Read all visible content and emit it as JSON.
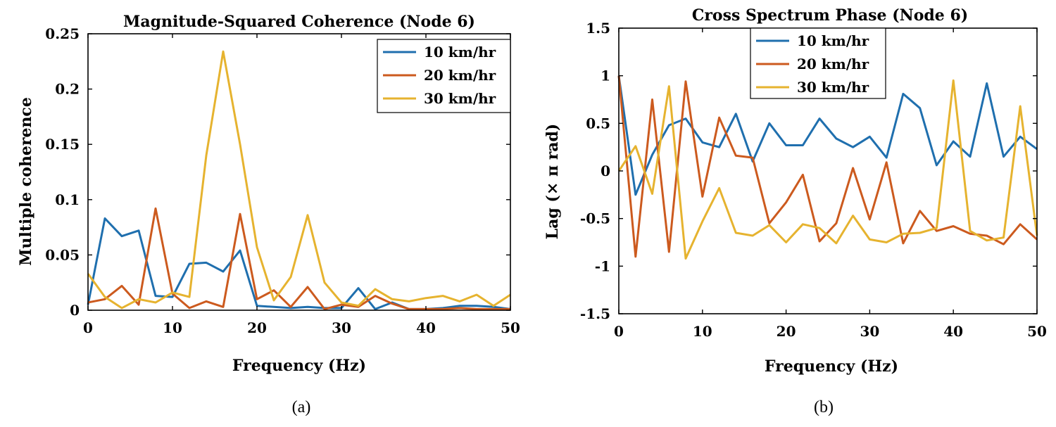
{
  "colors": {
    "s1": "#1f6fae",
    "s2": "#cc5a1e",
    "s3": "#e6b32f"
  },
  "chart_data": [
    {
      "type": "line",
      "title": "Magnitude-Squared Coherence (Node 6)",
      "xlabel": "Frequency (Hz)",
      "ylabel": "Multiple coherence",
      "xlim": [
        0,
        50
      ],
      "ylim": [
        0,
        0.25
      ],
      "xticks": [
        0,
        10,
        20,
        30,
        40,
        50
      ],
      "xtick_labels": [
        "0",
        "10",
        "20",
        "30",
        "40",
        "50"
      ],
      "yticks": [
        0,
        0.05,
        0.1,
        0.15,
        0.2,
        0.25
      ],
      "ytick_labels": [
        "0",
        "0.05",
        "0.1",
        "0.15",
        "0.2",
        "0.25"
      ],
      "legend_position": "top-right",
      "caption": "(a)",
      "x": [
        0,
        2,
        4,
        6,
        8,
        10,
        12,
        14,
        16,
        18,
        20,
        22,
        24,
        26,
        28,
        30,
        32,
        34,
        36,
        38,
        40,
        42,
        44,
        46,
        48,
        50
      ],
      "series": [
        {
          "name": "10 km/hr",
          "color_key": "s1",
          "values": [
            0.005,
            0.083,
            0.067,
            0.072,
            0.013,
            0.012,
            0.042,
            0.043,
            0.035,
            0.054,
            0.004,
            0.003,
            0.002,
            0.003,
            0.002,
            0.002,
            0.02,
            0.001,
            0.007,
            0.001,
            0.001,
            0.002,
            0.004,
            0.004,
            0.003,
            0.001
          ]
        },
        {
          "name": "20 km/hr",
          "color_key": "s2",
          "values": [
            0.007,
            0.01,
            0.022,
            0.005,
            0.092,
            0.015,
            0.002,
            0.008,
            0.003,
            0.087,
            0.01,
            0.018,
            0.003,
            0.021,
            0.001,
            0.005,
            0.003,
            0.013,
            0.006,
            0.001,
            0.001,
            0.001,
            0.002,
            0.001,
            0.001,
            0.001
          ]
        },
        {
          "name": "30 km/hr",
          "color_key": "s3",
          "values": [
            0.033,
            0.012,
            0.002,
            0.01,
            0.007,
            0.016,
            0.012,
            0.14,
            0.234,
            0.15,
            0.057,
            0.009,
            0.03,
            0.086,
            0.025,
            0.007,
            0.004,
            0.019,
            0.01,
            0.008,
            0.011,
            0.013,
            0.008,
            0.014,
            0.004,
            0.014
          ]
        }
      ]
    },
    {
      "type": "line",
      "title": "Cross Spectrum Phase (Node 6)",
      "xlabel": "Frequency (Hz)",
      "ylabel": "Lag (× π rad)",
      "xlim": [
        0,
        50
      ],
      "ylim": [
        -1.5,
        1.5
      ],
      "xticks": [
        0,
        10,
        20,
        30,
        40,
        50
      ],
      "xtick_labels": [
        "0",
        "10",
        "20",
        "30",
        "40",
        "50"
      ],
      "yticks": [
        -1.5,
        -1,
        -0.5,
        0,
        0.5,
        1,
        1.5
      ],
      "ytick_labels": [
        "-1.5",
        "-1",
        "-0.5",
        "0",
        "0.5",
        "1",
        "1.5"
      ],
      "legend_position": "top-center",
      "caption": "(b)",
      "x": [
        0,
        2,
        4,
        6,
        8,
        10,
        12,
        14,
        16,
        18,
        20,
        22,
        24,
        26,
        28,
        30,
        32,
        34,
        36,
        38,
        40,
        42,
        44,
        46,
        48,
        50
      ],
      "series": [
        {
          "name": "10 km/hr",
          "color_key": "s1",
          "values": [
            1.0,
            -0.25,
            0.17,
            0.48,
            0.55,
            0.3,
            0.25,
            0.6,
            0.1,
            0.5,
            0.27,
            0.27,
            0.55,
            0.34,
            0.25,
            0.36,
            0.14,
            0.81,
            0.66,
            0.06,
            0.31,
            0.15,
            0.92,
            0.15,
            0.36,
            0.23
          ]
        },
        {
          "name": "20 km/hr",
          "color_key": "s2",
          "values": [
            1.0,
            -0.9,
            0.75,
            -0.85,
            0.94,
            -0.27,
            0.56,
            0.16,
            0.14,
            -0.55,
            -0.33,
            -0.04,
            -0.74,
            -0.55,
            0.03,
            -0.51,
            0.09,
            -0.76,
            -0.42,
            -0.63,
            -0.58,
            -0.66,
            -0.68,
            -0.77,
            -0.56,
            -0.72
          ]
        },
        {
          "name": "30 km/hr",
          "color_key": "s3",
          "values": [
            0.0,
            0.26,
            -0.24,
            0.89,
            -0.92,
            -0.53,
            -0.18,
            -0.65,
            -0.68,
            -0.57,
            -0.75,
            -0.56,
            -0.6,
            -0.76,
            -0.47,
            -0.72,
            -0.75,
            -0.66,
            -0.65,
            -0.6,
            0.95,
            -0.63,
            -0.73,
            -0.7,
            0.68,
            -0.68
          ]
        }
      ]
    }
  ]
}
